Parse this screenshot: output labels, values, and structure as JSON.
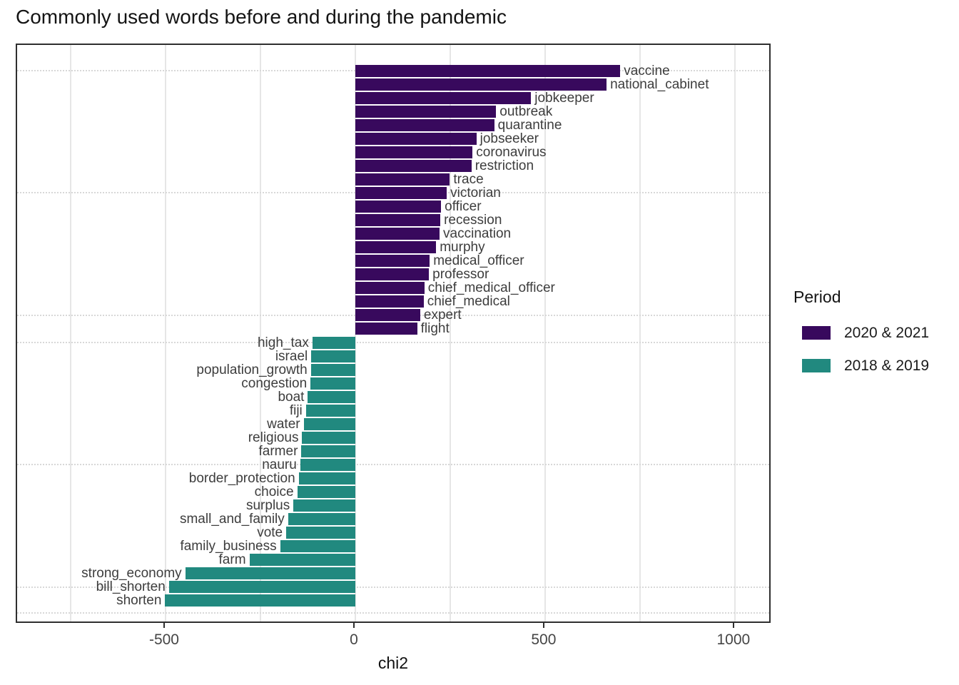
{
  "title": "Commonly used words before and during the pandemic",
  "chart_data": {
    "type": "bar",
    "orientation": "horizontal",
    "title": "Commonly used words before and during the pandemic",
    "xlabel": "chi2",
    "ylabel": "",
    "xlim": [
      -891,
      1098
    ],
    "x_ticks": [
      -500,
      0,
      500,
      1000
    ],
    "x_minor_gridlines": [
      -750,
      -250,
      250,
      750
    ],
    "dotted_gridline_rows": [
      0,
      9,
      18,
      20,
      29,
      38,
      39.9
    ],
    "grid": "on",
    "legend": {
      "title": "Period",
      "position": "right",
      "entries": [
        {
          "label": "2020 & 2021",
          "color": "#38095d"
        },
        {
          "label": "2018 & 2019",
          "color": "#21897f"
        }
      ]
    },
    "series": [
      {
        "name": "2020 & 2021",
        "color": "#38095d",
        "points": [
          {
            "word": "vaccine",
            "chi2": 698
          },
          {
            "word": "national_cabinet",
            "chi2": 662
          },
          {
            "word": "jobkeeper",
            "chi2": 463
          },
          {
            "word": "outbreak",
            "chi2": 371
          },
          {
            "word": "quarantine",
            "chi2": 366
          },
          {
            "word": "jobseeker",
            "chi2": 319
          },
          {
            "word": "coronavirus",
            "chi2": 309
          },
          {
            "word": "restriction",
            "chi2": 306
          },
          {
            "word": "trace",
            "chi2": 249
          },
          {
            "word": "victorian",
            "chi2": 241
          },
          {
            "word": "officer",
            "chi2": 226
          },
          {
            "word": "recession",
            "chi2": 224
          },
          {
            "word": "vaccination",
            "chi2": 222
          },
          {
            "word": "murphy",
            "chi2": 213
          },
          {
            "word": "medical_officer",
            "chi2": 196
          },
          {
            "word": "professor",
            "chi2": 194
          },
          {
            "word": "chief_medical_officer",
            "chi2": 182
          },
          {
            "word": "chief_medical",
            "chi2": 180
          },
          {
            "word": "expert",
            "chi2": 171
          },
          {
            "word": "flight",
            "chi2": 163
          }
        ]
      },
      {
        "name": "2018 & 2019",
        "color": "#21897f",
        "points": [
          {
            "word": "high_tax",
            "chi2": -113
          },
          {
            "word": "israel",
            "chi2": -116
          },
          {
            "word": "population_growth",
            "chi2": -117
          },
          {
            "word": "congestion",
            "chi2": -118
          },
          {
            "word": "boat",
            "chi2": -125
          },
          {
            "word": "fiji",
            "chi2": -130
          },
          {
            "word": "water",
            "chi2": -136
          },
          {
            "word": "religious",
            "chi2": -140
          },
          {
            "word": "farmer",
            "chi2": -142
          },
          {
            "word": "nauru",
            "chi2": -145
          },
          {
            "word": "border_protection",
            "chi2": -149
          },
          {
            "word": "choice",
            "chi2": -153
          },
          {
            "word": "surplus",
            "chi2": -163
          },
          {
            "word": "small_and_family",
            "chi2": -177
          },
          {
            "word": "vote",
            "chi2": -182
          },
          {
            "word": "family_business",
            "chi2": -198
          },
          {
            "word": "farm",
            "chi2": -279
          },
          {
            "word": "strong_economy",
            "chi2": -448
          },
          {
            "word": "bill_shorten",
            "chi2": -491
          },
          {
            "word": "shorten",
            "chi2": -501
          }
        ]
      }
    ]
  }
}
